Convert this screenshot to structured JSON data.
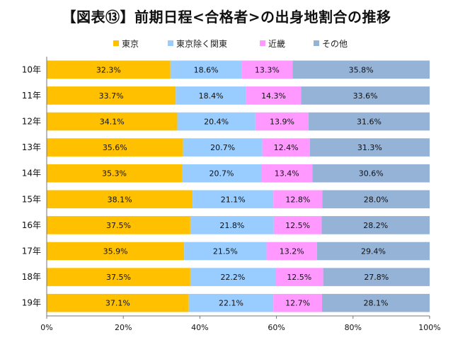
{
  "chart_data": {
    "type": "bar",
    "orientation": "horizontal",
    "stacked": true,
    "title": "【図表⑬】前期日程<合格者>の出身地割合の推移",
    "categories": [
      "10年",
      "11年",
      "12年",
      "13年",
      "14年",
      "15年",
      "16年",
      "17年",
      "18年",
      "19年"
    ],
    "series": [
      {
        "name": "東京",
        "color": "#FFC000",
        "values": [
          32.3,
          33.7,
          34.1,
          35.6,
          35.3,
          38.1,
          37.5,
          35.9,
          37.5,
          37.1
        ]
      },
      {
        "name": "東京除く関東",
        "color": "#99CCFF",
        "values": [
          18.6,
          18.4,
          20.4,
          20.7,
          20.7,
          21.1,
          21.8,
          21.5,
          22.2,
          22.1
        ]
      },
      {
        "name": "近畿",
        "color": "#FF99FF",
        "values": [
          13.3,
          14.3,
          13.9,
          12.4,
          13.4,
          12.8,
          12.5,
          13.2,
          12.5,
          12.7
        ]
      },
      {
        "name": "その他",
        "color": "#95B3D7",
        "values": [
          35.8,
          33.6,
          31.6,
          31.3,
          30.6,
          28.0,
          28.2,
          29.4,
          27.8,
          28.1
        ]
      }
    ],
    "xlim": [
      0,
      100
    ],
    "xticks": [
      "0%",
      "20%",
      "40%",
      "60%",
      "80%",
      "100%"
    ],
    "legend_position": "top",
    "grid": false,
    "value_format": "percent-1dp"
  }
}
